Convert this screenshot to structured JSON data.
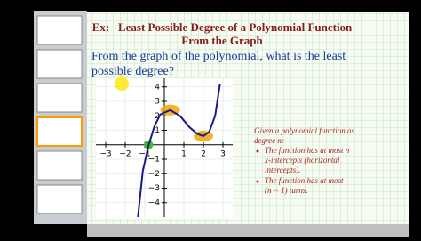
{
  "slide": {
    "title": [
      "Ex:   Least Possible Degree of a Polynomial Function",
      "From the Graph"
    ],
    "question": [
      "From the graph of the polynomial, what is the least",
      "possible degree?"
    ],
    "notes": {
      "intro": [
        "Given a polynomial function as",
        "degree n:"
      ],
      "bullets": [
        [
          "The function has at most n",
          "x-intercepts (horizontal",
          "intercepts)."
        ],
        [
          "The function has at most",
          "(n − 1) turns."
        ]
      ]
    }
  },
  "graph": {
    "xlim": [
      -3.5,
      3.5
    ],
    "ylim": [
      -5,
      4.6
    ],
    "xticks": [
      {
        "value": -3,
        "label": "−3"
      },
      {
        "value": -2,
        "label": "−2"
      },
      {
        "value": -1,
        "label": "−1"
      },
      1,
      2,
      3
    ],
    "yticks": [
      4,
      3,
      2,
      1,
      {
        "value": -1,
        "label": "−1"
      },
      {
        "value": -2,
        "label": "−2"
      },
      {
        "value": -3,
        "label": "−3"
      },
      {
        "value": -4,
        "label": "−4"
      }
    ],
    "curve": {
      "x": [
        -1.35,
        -1.1,
        -0.8,
        -0.5,
        -0.2,
        0.3,
        0.8,
        1.3,
        1.7,
        2,
        2.3,
        2.6,
        2.85
      ],
      "y": [
        -5,
        -1.8,
        0,
        1.3,
        2.1,
        2.4,
        2,
        1.2,
        0.75,
        0.6,
        0.9,
        2,
        4.2
      ]
    }
  }
}
